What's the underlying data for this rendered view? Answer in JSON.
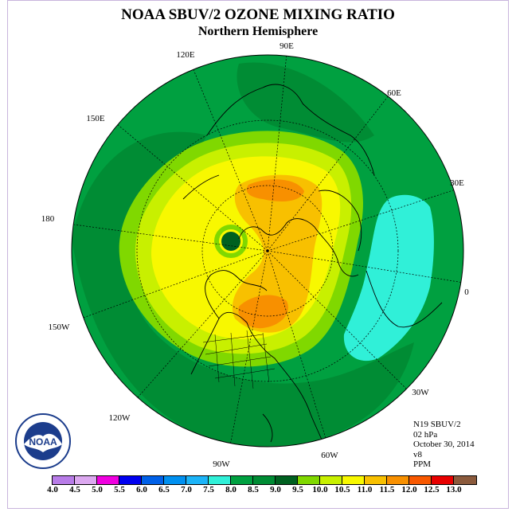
{
  "title": "NOAA SBUV/2 OZONE MIXING RATIO",
  "subtitle": "Northern Hemisphere",
  "longitude_labels": {
    "deg90e": "90E",
    "deg60e": "60E",
    "deg30e": "30E",
    "deg0": "0",
    "deg30w": "30W",
    "deg60w": "60W",
    "deg90w": "90W",
    "deg120w": "120W",
    "deg150w": "150W",
    "deg180": "180",
    "deg150e": "150E",
    "deg120e": "120E"
  },
  "info": {
    "satellite": "N19 SBUV/2",
    "level": "02 hPa",
    "date": "October 30, 2014",
    "version": "v8",
    "units": "PPM"
  },
  "logo_text": "NOAA",
  "colorbar": {
    "colors": [
      "#b87ce8",
      "#dca8f0",
      "#f000e0",
      "#0000f0",
      "#0060e8",
      "#0090f0",
      "#1cb4f8",
      "#30f0d8",
      "#00a040",
      "#008c34",
      "#006020",
      "#80d800",
      "#c8f000",
      "#f8f800",
      "#f8c000",
      "#f89000",
      "#f85800",
      "#e80000",
      "#8b5a3c"
    ],
    "ticks": [
      "4.0",
      "4.5",
      "5.0",
      "5.5",
      "6.0",
      "6.5",
      "7.0",
      "7.5",
      "8.0",
      "8.5",
      "9.0",
      "9.5",
      "10.0",
      "10.5",
      "11.0",
      "11.5",
      "12.0",
      "12.5",
      "13.0"
    ]
  }
}
